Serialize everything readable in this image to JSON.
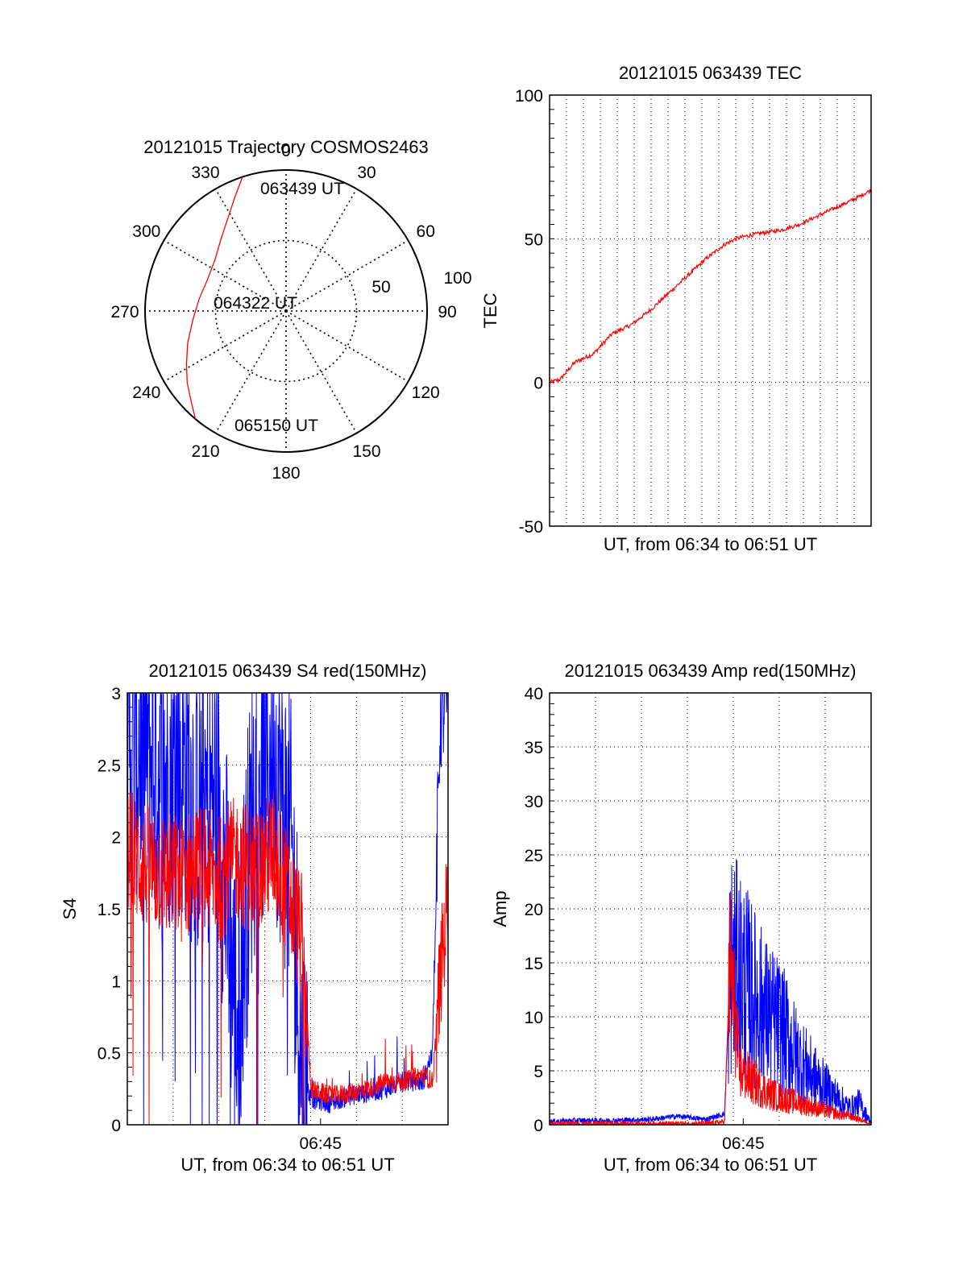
{
  "colors": {
    "series_red": "#ff0000",
    "series_blue": "#0000ff",
    "axis": "#000000",
    "grid": "#000000"
  },
  "chart_data": [
    {
      "type": "polar",
      "title": "20121015 Trajectory COSMOS2463",
      "azimuth_labels": [
        "0",
        "30",
        "60",
        "90",
        "120",
        "150",
        "180",
        "210",
        "240",
        "270",
        "300",
        "330"
      ],
      "radial_labels": [
        "50",
        "100"
      ],
      "point_labels": [
        "063439 UT",
        "064322 UT",
        "065150 UT"
      ],
      "series": [
        {
          "color": "red",
          "points_az_zenith": [
            [
              342,
              90
            ],
            [
              336,
              80
            ],
            [
              328,
              70
            ],
            [
              318,
              62
            ],
            [
              306,
              56
            ],
            [
              292,
              54
            ],
            [
              278,
              56
            ],
            [
              264,
              60
            ],
            [
              252,
              66
            ],
            [
              242,
              72
            ],
            [
              234,
              78
            ],
            [
              226,
              84
            ],
            [
              220,
              90
            ]
          ]
        }
      ]
    },
    {
      "type": "line",
      "title": "20121015 063439 TEC",
      "xlabel": "UT, from 06:34 to 06:51 UT",
      "ylabel": "TEC",
      "ylim": [
        -50,
        100
      ],
      "yticks": [
        "-50",
        "0",
        "50",
        "100"
      ],
      "xlim_minutes": [
        34.65,
        51.83
      ],
      "x_minor_gridlines": 18,
      "grid": true,
      "series": [
        {
          "color": "red",
          "x": [
            34.65,
            35.2,
            36.0,
            37.0,
            38.0,
            39.0,
            40.0,
            41.0,
            42.0,
            43.0,
            44.0,
            44.6,
            45.2,
            46.0,
            47.0,
            48.0,
            49.0,
            50.0,
            51.0,
            51.83
          ],
          "y": [
            0,
            1,
            7,
            10,
            17,
            20,
            25,
            31,
            37,
            43,
            48,
            50,
            51,
            52,
            53,
            55,
            58,
            61,
            64,
            67
          ]
        }
      ]
    },
    {
      "type": "line",
      "title": "20121015 063439 S4 red(150MHz)",
      "xlabel": "UT, from 06:34 to 06:51 UT",
      "ylabel": "S4",
      "ylim": [
        0,
        3
      ],
      "yticks": [
        "0",
        "0.5",
        "1",
        "1.5",
        "2",
        "2.5",
        "3"
      ],
      "xticks": [
        "06:45"
      ],
      "xlim_minutes": [
        34.65,
        51.83
      ],
      "grid": true,
      "series": [
        {
          "color": "blue",
          "x": [
            34.65,
            35.5,
            36.5,
            37.5,
            38.5,
            39.5,
            40.5,
            41.5,
            42.5,
            43.5,
            44.0,
            44.5,
            45.5,
            46.5,
            47.5,
            48.5,
            49.5,
            50.5,
            51.0,
            51.4,
            51.83
          ],
          "y": [
            2.6,
            2.7,
            2.4,
            2.5,
            2.2,
            2.3,
            0.7,
            2.4,
            2.6,
            1.8,
            0.35,
            0.18,
            0.15,
            0.2,
            0.22,
            0.25,
            0.3,
            0.3,
            0.5,
            2.8,
            3.0
          ]
        },
        {
          "color": "red",
          "x": [
            34.65,
            35.5,
            36.5,
            37.5,
            38.5,
            39.5,
            40.5,
            41.5,
            42.5,
            43.5,
            44.0,
            44.5,
            45.5,
            46.5,
            47.5,
            48.5,
            49.5,
            50.5,
            51.0,
            51.4,
            51.83
          ],
          "y": [
            1.9,
            1.8,
            1.75,
            1.7,
            1.8,
            1.7,
            1.85,
            1.75,
            1.9,
            1.5,
            1.3,
            0.25,
            0.2,
            0.22,
            0.25,
            0.3,
            0.3,
            0.35,
            0.3,
            1.0,
            1.6
          ]
        }
      ]
    },
    {
      "type": "line",
      "title": "20121015 063439 Amp red(150MHz)",
      "xlabel": "UT, from 06:34 to 06:51 UT",
      "ylabel": "Amp",
      "ylim": [
        0,
        40
      ],
      "yticks": [
        "0",
        "5",
        "10",
        "15",
        "20",
        "25",
        "30",
        "35",
        "40"
      ],
      "xticks": [
        "06:45"
      ],
      "xlim_minutes": [
        34.65,
        51.83
      ],
      "grid": true,
      "series": [
        {
          "color": "blue",
          "x": [
            34.65,
            36.0,
            38.0,
            40.0,
            41.5,
            43.0,
            44.0,
            44.3,
            44.8,
            45.5,
            46.3,
            47.0,
            48.0,
            49.0,
            50.0,
            50.7,
            51.2,
            51.83
          ],
          "y": [
            0.3,
            0.4,
            0.4,
            0.5,
            0.8,
            0.5,
            1.0,
            15,
            14,
            12,
            10,
            9,
            6,
            4,
            2.5,
            1.5,
            2.0,
            0.2
          ]
        },
        {
          "color": "red",
          "x": [
            34.65,
            36.0,
            38.0,
            40.0,
            41.5,
            43.0,
            44.0,
            44.3,
            44.8,
            45.5,
            46.3,
            47.0,
            48.0,
            49.0,
            50.0,
            50.7,
            51.2,
            51.83
          ],
          "y": [
            0.1,
            0.1,
            0.1,
            0.1,
            0.1,
            0.1,
            0.3,
            15,
            5,
            4,
            3,
            2.5,
            2,
            1.5,
            1,
            0.8,
            0.5,
            0.1
          ]
        }
      ]
    }
  ]
}
